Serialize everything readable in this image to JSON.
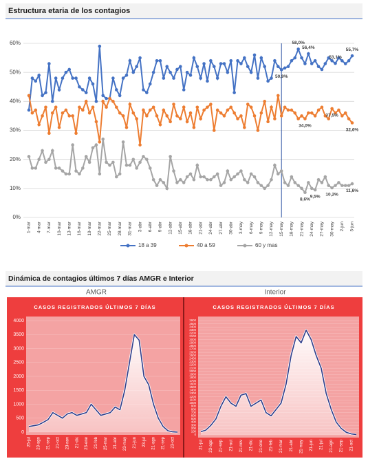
{
  "header2": "Dinámica de contagios  últimos 7 días AMGR e Interior",
  "chart_data": [
    {
      "type": "line",
      "title": "Estructura etaria de los contagios",
      "categories": [
        "1-mar",
        null,
        null,
        "4-mar",
        null,
        null,
        "7-mar",
        null,
        null,
        "10-mar",
        null,
        null,
        "13-mar",
        null,
        null,
        "16-mar",
        null,
        null,
        "19-mar",
        null,
        null,
        "22-mar",
        null,
        null,
        "25-mar",
        null,
        null,
        "28-mar",
        null,
        null,
        "31-mar",
        null,
        null,
        "3-abr",
        null,
        null,
        "6-abr",
        null,
        null,
        "9-abr",
        null,
        null,
        "12-abr",
        null,
        null,
        "15-abr",
        null,
        null,
        "18-abr",
        null,
        null,
        "21-abr",
        null,
        null,
        "24-abr",
        null,
        null,
        "27-abr",
        null,
        null,
        "30-abr",
        null,
        null,
        "3-may",
        null,
        null,
        "6-may",
        null,
        null,
        "9-may",
        null,
        null,
        "12-may",
        null,
        null,
        "15-may",
        null,
        null,
        "18-may",
        null,
        null,
        "21-may",
        null,
        null,
        "24-may",
        null,
        null,
        "27-may",
        null,
        null,
        "30-may",
        null,
        null,
        "2-jun",
        null,
        null,
        "5-jun"
      ],
      "reference_x": "15-may",
      "ylim": [
        0,
        60
      ],
      "yticks": [
        {
          "value": 0,
          "label": "0%"
        },
        {
          "value": 10,
          "label": "10%"
        },
        {
          "value": 20,
          "label": "20%"
        },
        {
          "value": 30,
          "label": "30%"
        },
        {
          "value": 40,
          "label": "40%"
        },
        {
          "value": 50,
          "label": "50%"
        },
        {
          "value": 60,
          "label": "60%"
        }
      ],
      "grid": true,
      "legend": "bottom",
      "series": [
        {
          "name": "18 a 39",
          "color": "#4472c4",
          "values": [
            37,
            48,
            47,
            49,
            42,
            43,
            53,
            40,
            48,
            44,
            48,
            50,
            51,
            48,
            48,
            45,
            44,
            43,
            48,
            46,
            40,
            59,
            42,
            41,
            41,
            48,
            44,
            42,
            48,
            49,
            54,
            50,
            52,
            55,
            44,
            43,
            46,
            50,
            54,
            54,
            48,
            52,
            50,
            48,
            51,
            52,
            44,
            50,
            49,
            55,
            52,
            48,
            53,
            47,
            54,
            52,
            48,
            53,
            53,
            50,
            54,
            43,
            54,
            53,
            55,
            52,
            50,
            56,
            48,
            55,
            52,
            47,
            48,
            54,
            52,
            50.9,
            51.5,
            52,
            54,
            55,
            58.0,
            55,
            53,
            56.4,
            53,
            54,
            52,
            51,
            53,
            55,
            54,
            53.1,
            55,
            54,
            53,
            54,
            55.7
          ],
          "value_labels": [
            null,
            null,
            null,
            null,
            null,
            null,
            null,
            null,
            null,
            null,
            null,
            null,
            null,
            null,
            null,
            null,
            null,
            null,
            null,
            null,
            null,
            null,
            null,
            null,
            null,
            null,
            null,
            null,
            null,
            null,
            null,
            null,
            null,
            null,
            null,
            null,
            null,
            null,
            null,
            null,
            null,
            null,
            null,
            null,
            null,
            null,
            null,
            null,
            null,
            null,
            null,
            null,
            null,
            null,
            null,
            null,
            null,
            null,
            null,
            null,
            null,
            null,
            null,
            null,
            null,
            null,
            null,
            null,
            null,
            null,
            null,
            null,
            null,
            null,
            null,
            "50,9%",
            null,
            null,
            null,
            null,
            "58,0%",
            null,
            null,
            "56,4%",
            null,
            null,
            null,
            null,
            null,
            null,
            null,
            "53,1%",
            null,
            null,
            null,
            null,
            "55,7%"
          ]
        },
        {
          "name": "40 a 59",
          "color": "#ed7d31",
          "values": [
            42,
            36,
            37,
            32,
            35,
            38,
            29,
            36,
            38,
            31,
            36,
            37,
            35,
            35,
            29,
            38,
            37,
            40,
            36,
            38,
            33,
            26,
            40,
            38,
            41,
            40,
            38,
            36,
            35,
            31,
            39,
            36,
            34,
            25,
            37,
            35,
            37,
            38,
            35,
            32,
            37,
            35,
            33,
            39,
            35,
            34,
            38,
            33,
            36,
            31,
            38,
            34,
            37,
            38,
            39,
            30,
            37,
            36,
            35,
            37,
            38,
            36,
            34,
            35,
            31,
            39,
            38,
            35,
            30,
            36,
            40,
            33,
            38,
            34,
            42,
            35,
            38,
            37,
            37,
            36,
            34,
            35,
            34.0,
            36,
            36,
            35,
            37,
            38,
            35,
            34,
            37.5,
            36,
            37,
            35,
            36,
            34,
            32.6
          ],
          "value_labels": [
            null,
            null,
            null,
            null,
            null,
            null,
            null,
            null,
            null,
            null,
            null,
            null,
            null,
            null,
            null,
            null,
            null,
            null,
            null,
            null,
            null,
            null,
            null,
            null,
            null,
            null,
            null,
            null,
            null,
            null,
            null,
            null,
            null,
            null,
            null,
            null,
            null,
            null,
            null,
            null,
            null,
            null,
            null,
            null,
            null,
            null,
            null,
            null,
            null,
            null,
            null,
            null,
            null,
            null,
            null,
            null,
            null,
            null,
            null,
            null,
            null,
            null,
            null,
            null,
            null,
            null,
            null,
            null,
            null,
            null,
            null,
            null,
            null,
            null,
            null,
            null,
            null,
            null,
            null,
            null,
            null,
            null,
            "34,0%",
            null,
            null,
            null,
            null,
            null,
            null,
            null,
            "37,5%",
            null,
            null,
            null,
            null,
            null,
            "32,6%"
          ]
        },
        {
          "name": "60 y mas",
          "color": "#a5a5a5",
          "values": [
            21,
            17,
            17,
            20,
            23,
            19,
            20,
            23,
            17,
            17,
            16,
            15,
            15,
            25,
            16,
            15,
            17,
            21,
            19,
            24,
            25,
            15,
            27,
            19,
            18,
            19,
            14,
            15,
            26,
            18,
            18,
            20,
            17,
            19,
            21,
            20,
            17,
            13,
            11,
            13,
            12,
            10,
            21,
            16,
            12,
            13,
            12,
            14,
            15,
            13,
            18,
            14,
            14,
            13,
            13,
            14,
            15,
            11,
            12,
            16,
            13,
            14,
            15,
            16,
            13,
            12,
            15,
            14,
            12,
            11,
            10,
            11,
            13,
            18,
            15,
            16,
            12,
            11,
            14,
            12,
            11,
            10,
            8.6,
            12,
            10,
            9.5,
            13,
            12,
            14,
            11,
            10.2,
            11,
            12,
            11,
            11,
            11,
            11.6
          ],
          "value_labels": [
            null,
            null,
            null,
            null,
            null,
            null,
            null,
            null,
            null,
            null,
            null,
            null,
            null,
            null,
            null,
            null,
            null,
            null,
            null,
            null,
            null,
            null,
            null,
            null,
            null,
            null,
            null,
            null,
            null,
            null,
            null,
            null,
            null,
            null,
            null,
            null,
            null,
            null,
            null,
            null,
            null,
            null,
            null,
            null,
            null,
            null,
            null,
            null,
            null,
            null,
            null,
            null,
            null,
            null,
            null,
            null,
            null,
            null,
            null,
            null,
            null,
            null,
            null,
            null,
            null,
            null,
            null,
            null,
            null,
            null,
            null,
            null,
            null,
            null,
            null,
            null,
            null,
            null,
            null,
            null,
            null,
            null,
            "8,6%",
            null,
            null,
            "9,5%",
            null,
            null,
            null,
            null,
            "10,2%",
            null,
            null,
            null,
            null,
            null,
            "11,6%"
          ]
        }
      ]
    },
    {
      "type": "area",
      "subtitle": "AMGR",
      "title": "CASOS REGISTRADOS ÚLTIMOS 7 DÍAS",
      "color": "#2e3c8a",
      "categories": [
        "25-jul",
        null,
        "23-ago",
        null,
        "21-sep",
        null,
        "21-oct",
        null,
        "23-nov",
        null,
        "21-dic",
        null,
        "23-ene",
        null,
        "21-feb",
        null,
        "25-mar",
        null,
        "21-abr",
        null,
        "23-may",
        null,
        "21-jun",
        null,
        "23-jul",
        null,
        "21-ago",
        null,
        "21-sep",
        null,
        "23-oct",
        null
      ],
      "values": [
        200,
        230,
        260,
        350,
        450,
        700,
        600,
        500,
        650,
        700,
        600,
        650,
        700,
        1000,
        800,
        600,
        650,
        700,
        900,
        800,
        1500,
        2500,
        3500,
        3300,
        2000,
        1700,
        1000,
        500,
        200,
        50,
        10,
        0
      ],
      "ylim": [
        0,
        4000
      ],
      "yticks": [
        0,
        500,
        1000,
        1500,
        2000,
        2500,
        3000,
        3500,
        4000
      ],
      "grid": true
    },
    {
      "type": "area",
      "subtitle": "Interior",
      "title": "CASOS REGISTRADOS ÚLTIMOS 7 DÍAS",
      "color": "#2e3c8a",
      "categories": [
        "21-jul",
        null,
        "23-ago",
        null,
        "21-sep",
        null,
        "21-oct",
        null,
        "21-nov",
        null,
        "21-dic",
        null,
        "21-ene",
        null,
        "21-feb",
        null,
        "21-mar",
        null,
        "21-abr",
        null,
        "21-may",
        null,
        "21-jun",
        null,
        "21-jul",
        null,
        "21-ago",
        null,
        "21-sep",
        null,
        "21-oct",
        null
      ],
      "values": [
        100,
        150,
        300,
        500,
        900,
        1200,
        1000,
        900,
        1250,
        1300,
        900,
        1000,
        1100,
        700,
        600,
        800,
        1000,
        1600,
        2500,
        3100,
        2900,
        3300,
        3000,
        2500,
        2100,
        1300,
        800,
        400,
        200,
        80,
        30,
        10
      ],
      "ylim": [
        0,
        3600
      ],
      "yticks": [
        0,
        100,
        200,
        300,
        400,
        500,
        600,
        700,
        800,
        900,
        1000,
        1100,
        1200,
        1300,
        1400,
        1500,
        1600,
        1700,
        1800,
        1900,
        2000,
        2100,
        2200,
        2300,
        2400,
        2500,
        2600,
        2700,
        2800,
        2900,
        3000,
        3100,
        3200,
        3300,
        3400,
        3500,
        3600
      ],
      "grid": true
    }
  ]
}
